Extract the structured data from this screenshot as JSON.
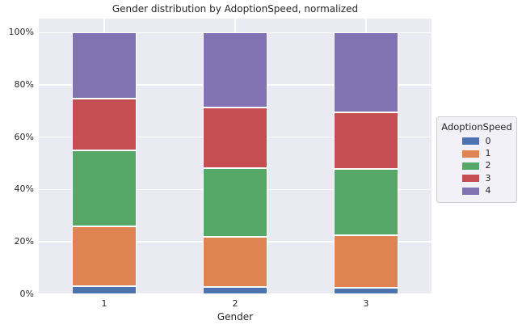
{
  "chart_data": {
    "type": "bar",
    "subtype": "stacked_normalized",
    "title": "Gender distribution by AdoptionSpeed, normalized",
    "xlabel": "Gender",
    "ylabel": "",
    "categories": [
      "1",
      "2",
      "3"
    ],
    "series": [
      {
        "name": "0",
        "color": "#4c72b0",
        "values": [
          3.1,
          2.7,
          2.3
        ]
      },
      {
        "name": "1",
        "color": "#dd8452",
        "values": [
          22.8,
          19.1,
          20.2
        ]
      },
      {
        "name": "2",
        "color": "#55a868",
        "values": [
          28.9,
          26.3,
          25.4
        ]
      },
      {
        "name": "3",
        "color": "#c44e52",
        "values": [
          20.0,
          23.3,
          21.7
        ]
      },
      {
        "name": "4",
        "color": "#8172b3",
        "values": [
          25.2,
          28.6,
          30.4
        ]
      }
    ],
    "stack_order": "series 0 at bottom, 4 on top",
    "ytick_values": [
      0,
      20,
      40,
      60,
      80,
      100
    ],
    "ytick_labels": [
      "0%",
      "20%",
      "40%",
      "60%",
      "80%",
      "100%"
    ],
    "ylim": [
      0,
      105.4
    ],
    "grid": true,
    "legend_title": "AdoptionSpeed",
    "legend_position": "outside-right",
    "colors": {
      "plot_background": "#eaeaf2",
      "figure_background": "#ffffff",
      "grid_line": "#ffffff",
      "bar_edge": "#ffffff",
      "text": "#262626",
      "legend_background": "#f1f1f7",
      "legend_border": "#ccccd6"
    }
  }
}
